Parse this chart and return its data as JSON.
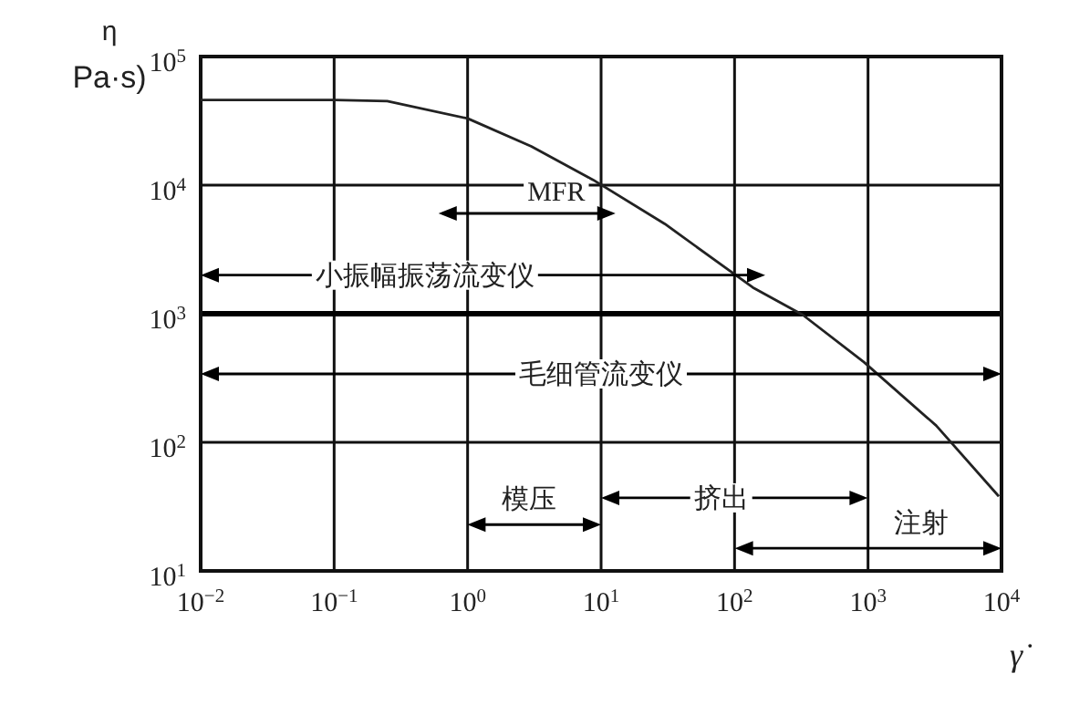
{
  "chart_data": {
    "type": "line",
    "xlabel": "γ̇",
    "ylabel": "η\nPa·s)",
    "log": "xy",
    "grid": true,
    "xlim": [
      0.01,
      10000
    ],
    "ylim": [
      10,
      100000
    ],
    "xticks": [
      {
        "value": 0.01,
        "label": "10$^{−2}$"
      },
      {
        "value": 0.1,
        "label": "10$^{−1}$"
      },
      {
        "value": 1,
        "label": "10$^{0}$"
      },
      {
        "value": 10,
        "label": "10$^{1}$"
      },
      {
        "value": 100,
        "label": "10$^{2}$"
      },
      {
        "value": 1000,
        "label": "10$^{3}$"
      },
      {
        "value": 10000,
        "label": "10$^{4}$"
      }
    ],
    "yticks": [
      {
        "value": 10,
        "label": "10$^{1}$"
      },
      {
        "value": 100,
        "label": "10$^{2}$"
      },
      {
        "value": 1000,
        "label": "10$^{3}$"
      },
      {
        "value": 10000,
        "label": "10$^{4}$"
      },
      {
        "value": 100000,
        "label": "10$^{5}$"
      }
    ],
    "ref_lines": [
      {
        "axis": "y",
        "value": 1000,
        "color": "#000000"
      }
    ],
    "series": [
      {
        "color": "#222222",
        "marker": "none",
        "x": [
          0.01,
          0.1,
          0.25,
          1,
          3,
          8.7,
          30,
          137,
          324,
          933,
          3240,
          9550
        ],
        "values": [
          46000,
          46000,
          45000,
          33000,
          20000,
          11000,
          5000,
          1600,
          980,
          420,
          135,
          38
        ]
      }
    ],
    "annotations": [
      "MFR",
      "小振幅振荡流变仪",
      "毛细管流变仪",
      "模压",
      "挤出",
      "注射"
    ]
  }
}
